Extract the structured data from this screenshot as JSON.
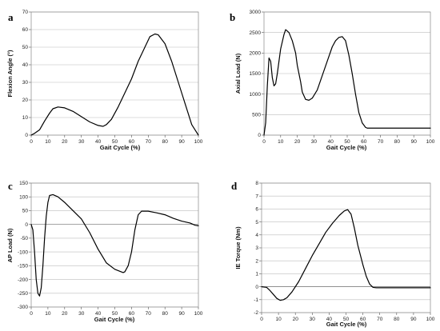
{
  "chart_data": [
    {
      "panel": "a",
      "type": "line",
      "xlabel": "Gait Cycle (%)",
      "ylabel": "Flexion Angle (°)",
      "xlim": [
        0,
        100
      ],
      "ylim": [
        0,
        70
      ],
      "xticks": [
        0,
        10,
        20,
        30,
        40,
        50,
        60,
        70,
        80,
        90,
        100
      ],
      "yticks": [
        0,
        10,
        20,
        30,
        40,
        50,
        60,
        70
      ],
      "grid": "horizontal",
      "series": [
        {
          "values": [
            [
              0,
              0
            ],
            [
              2,
              1
            ],
            [
              5,
              3
            ],
            [
              8,
              8
            ],
            [
              11,
              12.5
            ],
            [
              13,
              15
            ],
            [
              16,
              16
            ],
            [
              20,
              15.5
            ],
            [
              25,
              13.5
            ],
            [
              30,
              10.5
            ],
            [
              35,
              7.5
            ],
            [
              40,
              5.5
            ],
            [
              43,
              5
            ],
            [
              45,
              6
            ],
            [
              48,
              9
            ],
            [
              52,
              16
            ],
            [
              56,
              24
            ],
            [
              60,
              32
            ],
            [
              64,
              42
            ],
            [
              68,
              50
            ],
            [
              71,
              56
            ],
            [
              74,
              57.5
            ],
            [
              76,
              57
            ],
            [
              80,
              52
            ],
            [
              84,
              42
            ],
            [
              88,
              30
            ],
            [
              92,
              18
            ],
            [
              94,
              12
            ],
            [
              96,
              6
            ],
            [
              98,
              3
            ],
            [
              100,
              0
            ]
          ]
        }
      ]
    },
    {
      "panel": "b",
      "type": "line",
      "xlabel": "Gait Cycle (%)",
      "ylabel": "Axial Load (N)",
      "xlim": [
        0,
        100
      ],
      "ylim": [
        0,
        3000
      ],
      "xticks": [
        0,
        10,
        20,
        30,
        40,
        50,
        60,
        70,
        80,
        90,
        100
      ],
      "yticks": [
        0,
        500,
        1000,
        1500,
        2000,
        2500,
        3000
      ],
      "grid": "horizontal",
      "series": [
        {
          "values": [
            [
              0,
              0
            ],
            [
              1,
              300
            ],
            [
              2,
              1200
            ],
            [
              3,
              1880
            ],
            [
              4,
              1800
            ],
            [
              5,
              1400
            ],
            [
              6,
              1200
            ],
            [
              7,
              1250
            ],
            [
              8,
              1500
            ],
            [
              10,
              2100
            ],
            [
              12,
              2450
            ],
            [
              13,
              2570
            ],
            [
              15,
              2500
            ],
            [
              17,
              2300
            ],
            [
              19,
              2000
            ],
            [
              20,
              1700
            ],
            [
              22,
              1300
            ],
            [
              23,
              1050
            ],
            [
              25,
              870
            ],
            [
              27,
              850
            ],
            [
              29,
              900
            ],
            [
              32,
              1100
            ],
            [
              35,
              1450
            ],
            [
              38,
              1800
            ],
            [
              41,
              2150
            ],
            [
              43,
              2300
            ],
            [
              45,
              2380
            ],
            [
              47,
              2400
            ],
            [
              49,
              2300
            ],
            [
              51,
              1950
            ],
            [
              53,
              1500
            ],
            [
              55,
              1000
            ],
            [
              57,
              550
            ],
            [
              59,
              300
            ],
            [
              61,
              190
            ],
            [
              62,
              170
            ],
            [
              65,
              170
            ],
            [
              100,
              170
            ]
          ]
        }
      ]
    },
    {
      "panel": "c",
      "type": "line",
      "xlabel": "Gait Cycle (%)",
      "ylabel": "AP Load (N)",
      "xlim": [
        0,
        100
      ],
      "ylim": [
        -300,
        150
      ],
      "xticks": [
        0,
        10,
        20,
        30,
        40,
        50,
        60,
        70,
        80,
        90,
        100
      ],
      "yticks": [
        -300,
        -250,
        -200,
        -150,
        -100,
        -50,
        0,
        50,
        100,
        150
      ],
      "grid": "horizontal",
      "series": [
        {
          "values": [
            [
              0,
              0
            ],
            [
              1,
              -20
            ],
            [
              2,
              -100
            ],
            [
              3,
              -200
            ],
            [
              4,
              -250
            ],
            [
              5,
              -260
            ],
            [
              6,
              -230
            ],
            [
              7,
              -150
            ],
            [
              8,
              -50
            ],
            [
              9,
              30
            ],
            [
              10,
              80
            ],
            [
              11,
              105
            ],
            [
              13,
              108
            ],
            [
              16,
              100
            ],
            [
              20,
              80
            ],
            [
              25,
              50
            ],
            [
              30,
              20
            ],
            [
              35,
              -30
            ],
            [
              40,
              -90
            ],
            [
              45,
              -140
            ],
            [
              50,
              -163
            ],
            [
              55,
              -175
            ],
            [
              56,
              -172
            ],
            [
              58,
              -150
            ],
            [
              60,
              -100
            ],
            [
              62,
              -20
            ],
            [
              64,
              35
            ],
            [
              66,
              48
            ],
            [
              70,
              48
            ],
            [
              75,
              42
            ],
            [
              80,
              35
            ],
            [
              85,
              22
            ],
            [
              90,
              12
            ],
            [
              95,
              5
            ],
            [
              98,
              -3
            ],
            [
              100,
              -5
            ]
          ]
        }
      ]
    },
    {
      "panel": "d",
      "type": "line",
      "xlabel": "Gait Cycle (%)",
      "ylabel": "IE Torque (Nm)",
      "xlim": [
        0,
        100
      ],
      "ylim": [
        -2,
        8
      ],
      "xticks": [
        0,
        10,
        20,
        30,
        40,
        50,
        60,
        70,
        80,
        90,
        100
      ],
      "yticks": [
        -2,
        -1,
        0,
        1,
        2,
        3,
        4,
        5,
        6,
        7,
        8
      ],
      "grid": "horizontal",
      "series": [
        {
          "values": [
            [
              0,
              0
            ],
            [
              3,
              -0.05
            ],
            [
              5,
              -0.3
            ],
            [
              7,
              -0.6
            ],
            [
              9,
              -0.9
            ],
            [
              11,
              -1.05
            ],
            [
              13,
              -1.0
            ],
            [
              15,
              -0.85
            ],
            [
              18,
              -0.4
            ],
            [
              22,
              0.4
            ],
            [
              26,
              1.4
            ],
            [
              30,
              2.4
            ],
            [
              34,
              3.3
            ],
            [
              38,
              4.2
            ],
            [
              42,
              4.9
            ],
            [
              46,
              5.5
            ],
            [
              49,
              5.85
            ],
            [
              51,
              5.95
            ],
            [
              53,
              5.6
            ],
            [
              55,
              4.5
            ],
            [
              57,
              3.2
            ],
            [
              60,
              1.7
            ],
            [
              62,
              0.8
            ],
            [
              64,
              0.2
            ],
            [
              66,
              -0.05
            ],
            [
              68,
              -0.08
            ],
            [
              100,
              -0.08
            ]
          ]
        }
      ]
    }
  ]
}
